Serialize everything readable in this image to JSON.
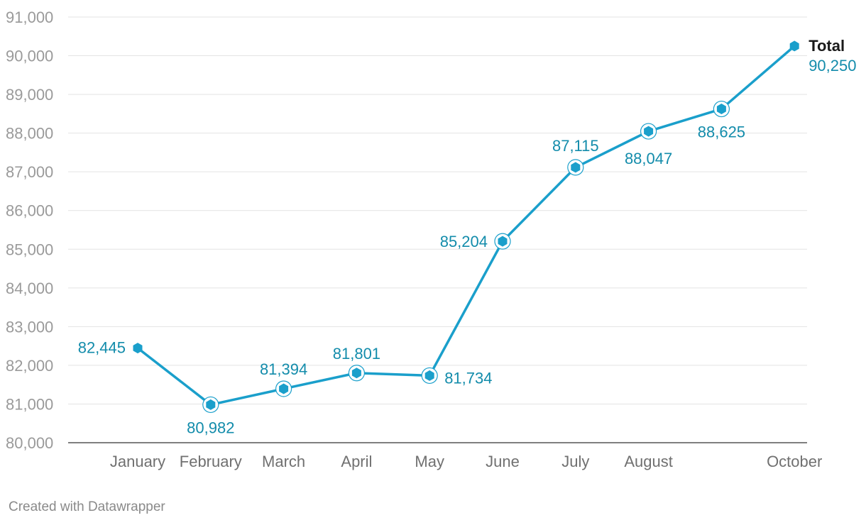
{
  "chart_data": {
    "type": "line",
    "categories": [
      "January",
      "February",
      "March",
      "April",
      "May",
      "June",
      "July",
      "August",
      "",
      "October"
    ],
    "series": [
      {
        "name": "Total",
        "values": [
          82445,
          80982,
          81394,
          81801,
          81734,
          85204,
          87115,
          88047,
          88625,
          90250
        ],
        "value_labels": [
          "82,445",
          "80,982",
          "81,394",
          "81,801",
          "81,734",
          "85,204",
          "87,115",
          "88,047",
          "88,625",
          "90,250"
        ],
        "color": "#1a9fcb",
        "label_color": "#138cab"
      }
    ],
    "ylim": [
      80000,
      91000
    ],
    "y_ticks": [
      80000,
      81000,
      82000,
      83000,
      84000,
      85000,
      86000,
      87000,
      88000,
      89000,
      90000,
      91000
    ],
    "y_tick_labels": [
      "80,000",
      "81,000",
      "82,000",
      "83,000",
      "84,000",
      "85,000",
      "86,000",
      "87,000",
      "88,000",
      "89,000",
      "90,000",
      "91,000"
    ],
    "grid": true,
    "legend": "inline-end-label",
    "title": "",
    "xlabel": "",
    "ylabel": ""
  },
  "footer": {
    "credit": "Created with Datawrapper"
  }
}
